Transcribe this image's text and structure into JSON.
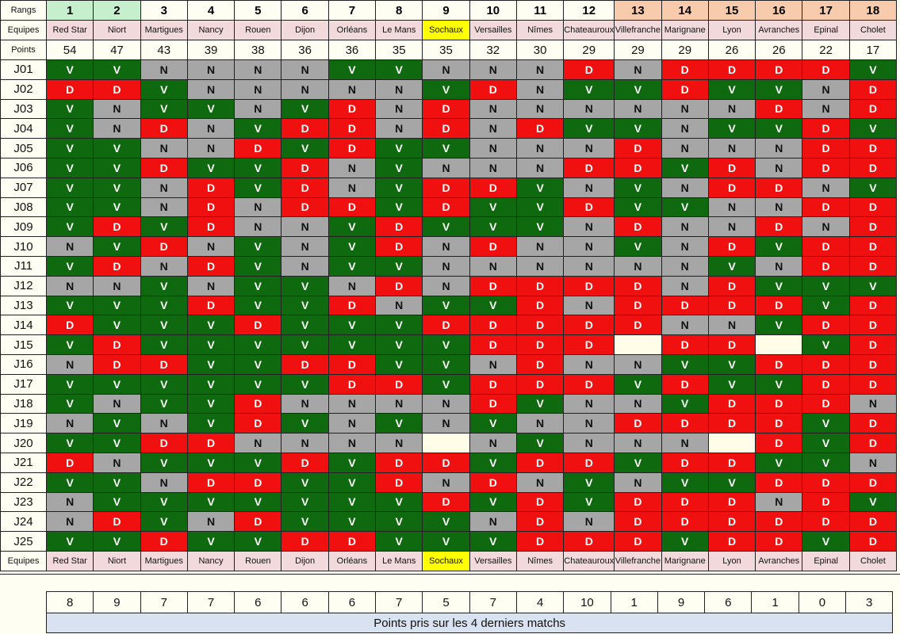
{
  "labels": {
    "rangs": "Rangs",
    "equipes": "Equipes",
    "points": "Points"
  },
  "colors": {
    "V": "#0f6a0f",
    "D": "#f01010",
    "N": "#a6a6a6",
    "blank": "#fffce8",
    "rank_top": "#c6efce",
    "rank_bottom": "#f8cbad",
    "rank_mid": "#fffef3",
    "team_bg": "#f2d9dc",
    "highlight": "#ffff00",
    "summary_bg": "#d9e2f0"
  },
  "ranks": [
    "1",
    "2",
    "3",
    "4",
    "5",
    "6",
    "7",
    "8",
    "9",
    "10",
    "11",
    "12",
    "13",
    "14",
    "15",
    "16",
    "17",
    "18"
  ],
  "teams": [
    "Red Star",
    "Niort",
    "Martigues",
    "Nancy",
    "Rouen",
    "Dijon",
    "Orléans",
    "Le Mans",
    "Sochaux",
    "Versailles",
    "Nîmes",
    "Chateauroux",
    "Villefranche",
    "Marignane",
    "Lyon",
    "Avranches",
    "Epinal",
    "Cholet"
  ],
  "points": [
    "54",
    "47",
    "43",
    "39",
    "38",
    "36",
    "36",
    "35",
    "35",
    "32",
    "30",
    "29",
    "29",
    "29",
    "26",
    "26",
    "22",
    "17"
  ],
  "rounds": [
    {
      "label": "J01",
      "results": [
        "V",
        "V",
        "N",
        "N",
        "N",
        "N",
        "V",
        "V",
        "N",
        "N",
        "N",
        "D",
        "N",
        "D",
        "D",
        "D",
        "D",
        "V"
      ]
    },
    {
      "label": "J02",
      "results": [
        "D",
        "D",
        "V",
        "N",
        "N",
        "N",
        "N",
        "N",
        "V",
        "D",
        "N",
        "V",
        "V",
        "D",
        "V",
        "V",
        "N",
        "D"
      ]
    },
    {
      "label": "J03",
      "results": [
        "V",
        "N",
        "V",
        "V",
        "N",
        "V",
        "D",
        "N",
        "D",
        "N",
        "N",
        "N",
        "N",
        "N",
        "N",
        "D",
        "N",
        "D"
      ]
    },
    {
      "label": "J04",
      "results": [
        "V",
        "N",
        "D",
        "N",
        "V",
        "D",
        "D",
        "N",
        "D",
        "N",
        "D",
        "V",
        "V",
        "N",
        "V",
        "V",
        "D",
        "V"
      ]
    },
    {
      "label": "J05",
      "results": [
        "V",
        "V",
        "N",
        "N",
        "D",
        "V",
        "D",
        "V",
        "V",
        "N",
        "N",
        "N",
        "D",
        "N",
        "N",
        "N",
        "D",
        "D"
      ]
    },
    {
      "label": "J06",
      "results": [
        "V",
        "V",
        "D",
        "V",
        "V",
        "D",
        "N",
        "V",
        "N",
        "N",
        "N",
        "D",
        "D",
        "V",
        "D",
        "N",
        "D",
        "D"
      ]
    },
    {
      "label": "J07",
      "results": [
        "V",
        "V",
        "N",
        "D",
        "V",
        "D",
        "N",
        "V",
        "D",
        "D",
        "V",
        "N",
        "V",
        "N",
        "D",
        "D",
        "N",
        "V"
      ]
    },
    {
      "label": "J08",
      "results": [
        "V",
        "V",
        "N",
        "D",
        "N",
        "D",
        "D",
        "V",
        "D",
        "V",
        "V",
        "D",
        "V",
        "V",
        "N",
        "N",
        "D",
        "D"
      ]
    },
    {
      "label": "J09",
      "results": [
        "V",
        "D",
        "V",
        "D",
        "N",
        "N",
        "V",
        "D",
        "V",
        "V",
        "V",
        "N",
        "D",
        "N",
        "N",
        "D",
        "N",
        "D"
      ]
    },
    {
      "label": "J10",
      "results": [
        "N",
        "V",
        "D",
        "N",
        "V",
        "N",
        "V",
        "D",
        "N",
        "D",
        "N",
        "N",
        "V",
        "N",
        "D",
        "V",
        "D",
        "D"
      ]
    },
    {
      "label": "J11",
      "results": [
        "V",
        "D",
        "N",
        "D",
        "V",
        "N",
        "V",
        "V",
        "N",
        "N",
        "N",
        "N",
        "N",
        "N",
        "V",
        "N",
        "D",
        "D"
      ]
    },
    {
      "label": "J12",
      "results": [
        "N",
        "N",
        "V",
        "N",
        "V",
        "V",
        "N",
        "D",
        "N",
        "D",
        "D",
        "D",
        "D",
        "N",
        "D",
        "V",
        "V",
        "V"
      ]
    },
    {
      "label": "J13",
      "results": [
        "V",
        "V",
        "V",
        "D",
        "V",
        "V",
        "D",
        "N",
        "V",
        "V",
        "D",
        "N",
        "D",
        "D",
        "D",
        "D",
        "V",
        "D"
      ]
    },
    {
      "label": "J14",
      "results": [
        "D",
        "V",
        "V",
        "V",
        "D",
        "V",
        "V",
        "V",
        "D",
        "D",
        "D",
        "D",
        "D",
        "N",
        "N",
        "V",
        "D",
        "D"
      ]
    },
    {
      "label": "J15",
      "results": [
        "V",
        "D",
        "V",
        "V",
        "V",
        "V",
        "V",
        "V",
        "V",
        "D",
        "D",
        "D",
        "",
        "D",
        "D",
        "",
        "V",
        "D"
      ]
    },
    {
      "label": "J16",
      "results": [
        "N",
        "D",
        "D",
        "V",
        "V",
        "D",
        "D",
        "V",
        "V",
        "N",
        "D",
        "N",
        "N",
        "V",
        "V",
        "D",
        "D",
        "D"
      ]
    },
    {
      "label": "J17",
      "results": [
        "V",
        "V",
        "V",
        "V",
        "V",
        "V",
        "D",
        "D",
        "V",
        "D",
        "D",
        "D",
        "V",
        "D",
        "V",
        "V",
        "D",
        "D"
      ]
    },
    {
      "label": "J18",
      "results": [
        "V",
        "N",
        "V",
        "V",
        "D",
        "N",
        "N",
        "N",
        "N",
        "D",
        "V",
        "N",
        "N",
        "V",
        "D",
        "D",
        "D",
        "N"
      ]
    },
    {
      "label": "J19",
      "results": [
        "N",
        "V",
        "N",
        "V",
        "D",
        "V",
        "N",
        "V",
        "N",
        "V",
        "N",
        "N",
        "D",
        "D",
        "D",
        "D",
        "V",
        "D"
      ]
    },
    {
      "label": "J20",
      "results": [
        "V",
        "V",
        "D",
        "D",
        "N",
        "N",
        "N",
        "N",
        "",
        "N",
        "V",
        "N",
        "N",
        "N",
        "",
        "D",
        "V",
        "D"
      ]
    },
    {
      "label": "J21",
      "results": [
        "D",
        "N",
        "V",
        "V",
        "V",
        "D",
        "V",
        "D",
        "D",
        "V",
        "D",
        "D",
        "V",
        "D",
        "D",
        "V",
        "V",
        "N"
      ]
    },
    {
      "label": "J22",
      "results": [
        "V",
        "V",
        "N",
        "D",
        "D",
        "V",
        "V",
        "D",
        "N",
        "D",
        "N",
        "V",
        "N",
        "V",
        "V",
        "D",
        "D",
        "D"
      ]
    },
    {
      "label": "J23",
      "results": [
        "N",
        "V",
        "V",
        "V",
        "V",
        "V",
        "V",
        "V",
        "D",
        "V",
        "D",
        "V",
        "D",
        "D",
        "D",
        "N",
        "D",
        "V"
      ]
    },
    {
      "label": "J24",
      "results": [
        "N",
        "D",
        "V",
        "N",
        "D",
        "V",
        "V",
        "V",
        "V",
        "N",
        "D",
        "N",
        "D",
        "D",
        "D",
        "D",
        "D",
        "D"
      ]
    },
    {
      "label": "J25",
      "results": [
        "V",
        "V",
        "D",
        "V",
        "V",
        "D",
        "D",
        "V",
        "V",
        "V",
        "D",
        "D",
        "D",
        "V",
        "D",
        "D",
        "V",
        "D"
      ]
    }
  ],
  "last4_points": [
    "8",
    "9",
    "7",
    "7",
    "6",
    "6",
    "6",
    "7",
    "5",
    "7",
    "4",
    "10",
    "1",
    "9",
    "6",
    "1",
    "0",
    "3"
  ],
  "last4_caption": "Points pris sur les 4 derniers matchs"
}
